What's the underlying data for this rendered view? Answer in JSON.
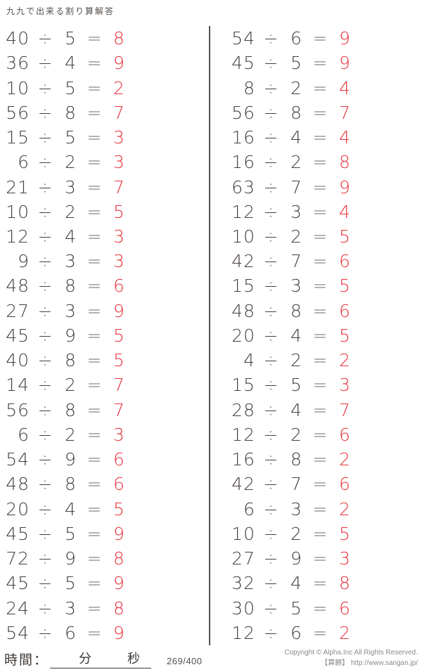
{
  "title": "九九で出来る割り算解答",
  "symbols": {
    "divide": "÷",
    "equals": "="
  },
  "problems": {
    "left": [
      {
        "dividend": "40",
        "divisor": "5",
        "answer": "8"
      },
      {
        "dividend": "36",
        "divisor": "4",
        "answer": "9"
      },
      {
        "dividend": "10",
        "divisor": "5",
        "answer": "2"
      },
      {
        "dividend": "56",
        "divisor": "8",
        "answer": "7"
      },
      {
        "dividend": "15",
        "divisor": "5",
        "answer": "3"
      },
      {
        "dividend": "6",
        "divisor": "2",
        "answer": "3"
      },
      {
        "dividend": "21",
        "divisor": "3",
        "answer": "7"
      },
      {
        "dividend": "10",
        "divisor": "2",
        "answer": "5"
      },
      {
        "dividend": "12",
        "divisor": "4",
        "answer": "3"
      },
      {
        "dividend": "9",
        "divisor": "3",
        "answer": "3"
      },
      {
        "dividend": "48",
        "divisor": "8",
        "answer": "6"
      },
      {
        "dividend": "27",
        "divisor": "3",
        "answer": "9"
      },
      {
        "dividend": "45",
        "divisor": "9",
        "answer": "5"
      },
      {
        "dividend": "40",
        "divisor": "8",
        "answer": "5"
      },
      {
        "dividend": "14",
        "divisor": "2",
        "answer": "7"
      },
      {
        "dividend": "56",
        "divisor": "8",
        "answer": "7"
      },
      {
        "dividend": "6",
        "divisor": "2",
        "answer": "3"
      },
      {
        "dividend": "54",
        "divisor": "9",
        "answer": "6"
      },
      {
        "dividend": "48",
        "divisor": "8",
        "answer": "6"
      },
      {
        "dividend": "20",
        "divisor": "4",
        "answer": "5"
      },
      {
        "dividend": "45",
        "divisor": "5",
        "answer": "9"
      },
      {
        "dividend": "72",
        "divisor": "9",
        "answer": "8"
      },
      {
        "dividend": "45",
        "divisor": "5",
        "answer": "9"
      },
      {
        "dividend": "24",
        "divisor": "3",
        "answer": "8"
      },
      {
        "dividend": "54",
        "divisor": "6",
        "answer": "9"
      }
    ],
    "right": [
      {
        "dividend": "54",
        "divisor": "6",
        "answer": "9"
      },
      {
        "dividend": "45",
        "divisor": "5",
        "answer": "9"
      },
      {
        "dividend": "8",
        "divisor": "2",
        "answer": "4"
      },
      {
        "dividend": "56",
        "divisor": "8",
        "answer": "7"
      },
      {
        "dividend": "16",
        "divisor": "4",
        "answer": "4"
      },
      {
        "dividend": "16",
        "divisor": "2",
        "answer": "8"
      },
      {
        "dividend": "63",
        "divisor": "7",
        "answer": "9"
      },
      {
        "dividend": "12",
        "divisor": "3",
        "answer": "4"
      },
      {
        "dividend": "10",
        "divisor": "2",
        "answer": "5"
      },
      {
        "dividend": "42",
        "divisor": "7",
        "answer": "6"
      },
      {
        "dividend": "15",
        "divisor": "3",
        "answer": "5"
      },
      {
        "dividend": "48",
        "divisor": "8",
        "answer": "6"
      },
      {
        "dividend": "20",
        "divisor": "4",
        "answer": "5"
      },
      {
        "dividend": "4",
        "divisor": "2",
        "answer": "2"
      },
      {
        "dividend": "15",
        "divisor": "5",
        "answer": "3"
      },
      {
        "dividend": "28",
        "divisor": "4",
        "answer": "7"
      },
      {
        "dividend": "12",
        "divisor": "2",
        "answer": "6"
      },
      {
        "dividend": "16",
        "divisor": "8",
        "answer": "2"
      },
      {
        "dividend": "42",
        "divisor": "7",
        "answer": "6"
      },
      {
        "dividend": "6",
        "divisor": "3",
        "answer": "2"
      },
      {
        "dividend": "10",
        "divisor": "2",
        "answer": "5"
      },
      {
        "dividend": "27",
        "divisor": "9",
        "answer": "3"
      },
      {
        "dividend": "32",
        "divisor": "4",
        "answer": "8"
      },
      {
        "dividend": "30",
        "divisor": "5",
        "answer": "6"
      },
      {
        "dividend": "12",
        "divisor": "6",
        "answer": "2"
      }
    ]
  },
  "footer": {
    "time_label": "時間：",
    "minutes_label": "分",
    "seconds_label": "秒",
    "page_indicator": "269/400",
    "copyright_line1": "Copyright © Alpha.Inc All Rights Reserved.",
    "copyright_line2": "【算願】 http://www.sangan.jp/"
  },
  "colors": {
    "number": "#46403c",
    "answer": "#e8343e",
    "divide_sign": "#46403c",
    "equals_sign": "#6e6966",
    "divider_line": "#56504d",
    "title_text": "#55504c",
    "copyright_text": "#8a8a8a"
  }
}
